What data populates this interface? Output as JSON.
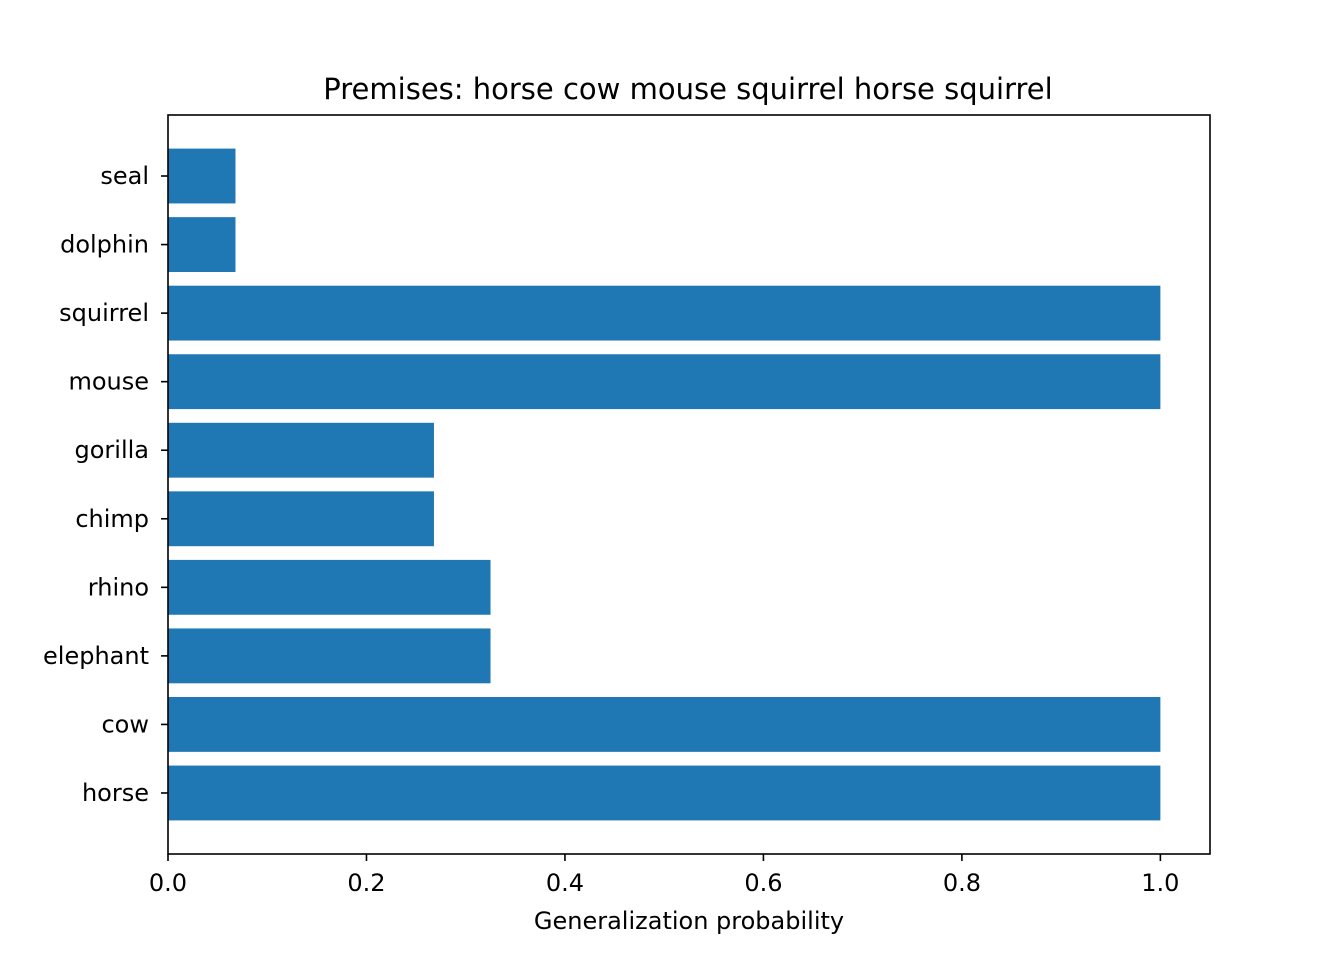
{
  "chart_data": {
    "type": "bar",
    "orientation": "horizontal",
    "title": "Premises: horse cow mouse squirrel horse squirrel",
    "xlabel": "Generalization probability",
    "ylabel": "",
    "categories": [
      "horse",
      "cow",
      "elephant",
      "rhino",
      "chimp",
      "gorilla",
      "mouse",
      "squirrel",
      "dolphin",
      "seal"
    ],
    "values": [
      1.0,
      1.0,
      0.325,
      0.325,
      0.268,
      0.268,
      1.0,
      1.0,
      0.068,
      0.068
    ],
    "xlim": [
      0,
      1.05
    ],
    "xticks": [
      "0.0",
      "0.2",
      "0.4",
      "0.6",
      "0.8",
      "1.0"
    ],
    "grid": false,
    "bar_color": "#1f77b4"
  }
}
